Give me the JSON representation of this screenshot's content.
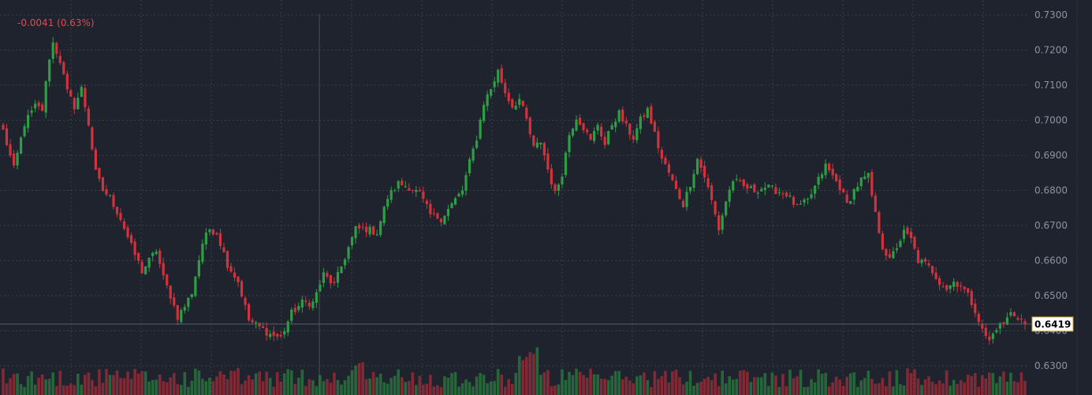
{
  "header": {
    "change_text": "-0.0041 (0.63%)"
  },
  "colors": {
    "background": "#1f232e",
    "up": "#2e9e45",
    "down": "#d2323c",
    "grid": "#3a3f4b",
    "text": "#8c93a3",
    "change_text": "#e04a52",
    "price_tag_bg": "#ffffff"
  },
  "price_tag": {
    "value": "0.6419"
  },
  "chart_data": {
    "type": "candlestick",
    "title": "",
    "y_ticks": [
      "0.7300",
      "0.7200",
      "0.7100",
      "0.7000",
      "0.6900",
      "0.6800",
      "0.6700",
      "0.6600",
      "0.6500",
      "0.6400",
      "0.6300"
    ],
    "ylim": [
      0.6245,
      0.731
    ],
    "last_price": 0.6419,
    "grid": true,
    "price_axis": "right",
    "path_closes": [
      [
        0,
        0.697
      ],
      [
        3,
        0.686
      ],
      [
        6,
        0.699
      ],
      [
        9,
        0.704
      ],
      [
        11,
        0.703
      ],
      [
        13,
        0.718
      ],
      [
        14,
        0.722
      ],
      [
        16,
        0.717
      ],
      [
        18,
        0.708
      ],
      [
        20,
        0.704
      ],
      [
        22,
        0.709
      ],
      [
        24,
        0.699
      ],
      [
        26,
        0.685
      ],
      [
        28,
        0.68
      ],
      [
        30,
        0.678
      ],
      [
        33,
        0.672
      ],
      [
        36,
        0.664
      ],
      [
        39,
        0.657
      ],
      [
        41,
        0.66
      ],
      [
        43,
        0.663
      ],
      [
        45,
        0.655
      ],
      [
        47,
        0.65
      ],
      [
        49,
        0.644
      ],
      [
        51,
        0.647
      ],
      [
        53,
        0.651
      ],
      [
        56,
        0.665
      ],
      [
        58,
        0.669
      ],
      [
        60,
        0.668
      ],
      [
        63,
        0.659
      ],
      [
        66,
        0.654
      ],
      [
        69,
        0.643
      ],
      [
        72,
        0.641
      ],
      [
        75,
        0.639
      ],
      [
        78,
        0.638
      ],
      [
        81,
        0.645
      ],
      [
        84,
        0.648
      ],
      [
        87,
        0.648
      ],
      [
        90,
        0.656
      ],
      [
        93,
        0.653
      ],
      [
        96,
        0.661
      ],
      [
        99,
        0.669
      ],
      [
        102,
        0.669
      ],
      [
        105,
        0.668
      ],
      [
        108,
        0.678
      ],
      [
        111,
        0.682
      ],
      [
        114,
        0.681
      ],
      [
        117,
        0.679
      ],
      [
        120,
        0.673
      ],
      [
        123,
        0.672
      ],
      [
        126,
        0.676
      ],
      [
        129,
        0.68
      ],
      [
        131,
        0.688
      ],
      [
        133,
        0.695
      ],
      [
        135,
        0.705
      ],
      [
        137,
        0.709
      ],
      [
        139,
        0.714
      ],
      [
        141,
        0.708
      ],
      [
        143,
        0.704
      ],
      [
        145,
        0.706
      ],
      [
        147,
        0.7
      ],
      [
        149,
        0.692
      ],
      [
        151,
        0.694
      ],
      [
        153,
        0.686
      ],
      [
        155,
        0.679
      ],
      [
        157,
        0.685
      ],
      [
        159,
        0.696
      ],
      [
        161,
        0.701
      ],
      [
        163,
        0.698
      ],
      [
        165,
        0.694
      ],
      [
        167,
        0.699
      ],
      [
        169,
        0.693
      ],
      [
        171,
        0.699
      ],
      [
        173,
        0.702
      ],
      [
        175,
        0.698
      ],
      [
        177,
        0.695
      ],
      [
        179,
        0.7
      ],
      [
        181,
        0.703
      ],
      [
        183,
        0.696
      ],
      [
        185,
        0.689
      ],
      [
        187,
        0.685
      ],
      [
        189,
        0.68
      ],
      [
        191,
        0.676
      ],
      [
        193,
        0.682
      ],
      [
        195,
        0.689
      ],
      [
        197,
        0.684
      ],
      [
        199,
        0.677
      ],
      [
        201,
        0.669
      ],
      [
        203,
        0.677
      ],
      [
        205,
        0.683
      ],
      [
        208,
        0.681
      ],
      [
        211,
        0.68
      ],
      [
        214,
        0.681
      ],
      [
        217,
        0.68
      ],
      [
        220,
        0.679
      ],
      [
        223,
        0.675
      ],
      [
        226,
        0.677
      ],
      [
        229,
        0.683
      ],
      [
        231,
        0.687
      ],
      [
        233,
        0.684
      ],
      [
        235,
        0.681
      ],
      [
        237,
        0.676
      ],
      [
        239,
        0.68
      ],
      [
        241,
        0.683
      ],
      [
        243,
        0.684
      ],
      [
        245,
        0.673
      ],
      [
        247,
        0.664
      ],
      [
        249,
        0.66
      ],
      [
        251,
        0.664
      ],
      [
        253,
        0.668
      ],
      [
        255,
        0.666
      ],
      [
        257,
        0.66
      ],
      [
        259,
        0.659
      ],
      [
        261,
        0.657
      ],
      [
        263,
        0.654
      ],
      [
        265,
        0.652
      ],
      [
        267,
        0.654
      ],
      [
        269,
        0.653
      ],
      [
        271,
        0.65
      ],
      [
        273,
        0.646
      ],
      [
        275,
        0.64
      ],
      [
        277,
        0.637
      ],
      [
        279,
        0.641
      ],
      [
        281,
        0.642
      ],
      [
        283,
        0.645
      ],
      [
        285,
        0.644
      ],
      [
        287,
        0.6419
      ]
    ]
  }
}
